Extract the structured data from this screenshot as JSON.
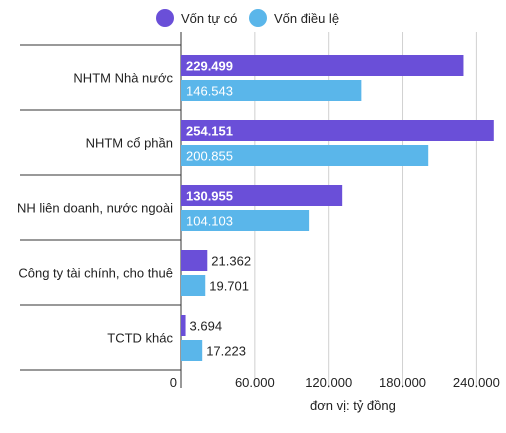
{
  "chart_data": {
    "type": "bar",
    "orientation": "horizontal",
    "categories": [
      "NHTM Nhà nước",
      "NHTM cổ phần",
      "NH liên doanh, nước ngoài",
      "Công ty tài chính, cho thuê",
      "TCTD khác"
    ],
    "series": [
      {
        "name": "Vốn tự có",
        "color": "#6a4fd8",
        "values": [
          229499,
          254151,
          130955,
          21362,
          3694
        ],
        "labels": [
          "229.499",
          "254.151",
          "130.955",
          "21.362",
          "3.694"
        ]
      },
      {
        "name": "Vốn điều lệ",
        "color": "#5ab6ea",
        "values": [
          146543,
          200855,
          104103,
          19701,
          17223
        ],
        "labels": [
          "146.543",
          "200.855",
          "104.103",
          "19.701",
          "17.223"
        ]
      }
    ],
    "xlim": [
      0,
      260000
    ],
    "x_ticks": [
      0,
      60000,
      120000,
      180000,
      240000
    ],
    "x_tick_labels": [
      "0",
      "60.000",
      "120.000",
      "180.000",
      "240.000"
    ],
    "unit_note": "đơn vị: tỷ đồng",
    "grid": true,
    "legend_position": "top"
  }
}
